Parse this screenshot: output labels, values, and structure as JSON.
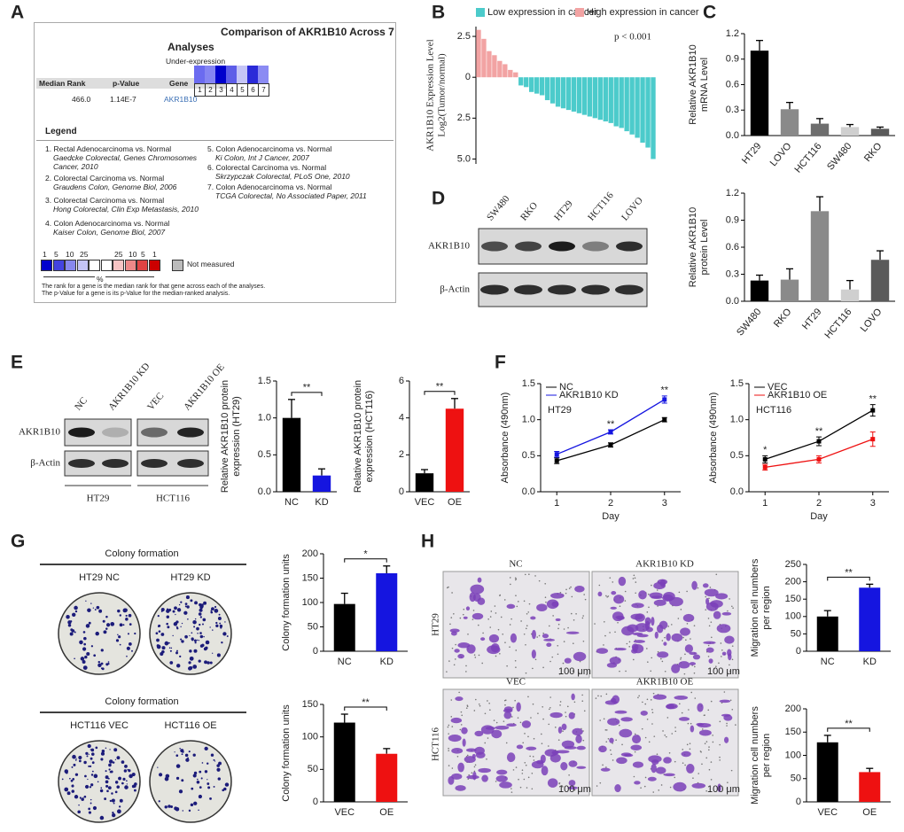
{
  "panel_labels": [
    "A",
    "B",
    "C",
    "D",
    "E",
    "F",
    "G",
    "H"
  ],
  "oncomine": {
    "title": "Comparison of AKR1B10 Across 7",
    "title2": "Analyses",
    "subtitle": "Under-expression",
    "headers": [
      "Median Rank",
      "p-Value",
      "Gene"
    ],
    "row": [
      "466.0",
      "1.14E-7",
      "AKR1B10"
    ],
    "columns": [
      "1",
      "2",
      "3",
      "4",
      "5",
      "6",
      "7"
    ],
    "legend_title": "Legend",
    "legend": [
      {
        "label": "1. Rectal Adenocarcinoma vs. Normal",
        "source": "Gaedcke Colorectal, Genes Chromosomes Cancer, 2010"
      },
      {
        "label": "2. Colorectal Carcinoma vs. Normal",
        "source": "Graudens Colon, Genome Biol, 2006"
      },
      {
        "label": "3. Colorectal Carcinoma vs. Normal",
        "source": "Hong Colorectal, Clin Exp Metastasis, 2010"
      },
      {
        "label": "4. Colon Adenocarcinoma vs. Normal",
        "source": "Kaiser Colon, Genome Biol, 2007"
      },
      {
        "label": "5. Colon Adenocarcinoma vs. Normal",
        "source": "Ki Colon, Int J Cancer, 2007"
      },
      {
        "label": "6. Colorectal Carcinoma vs. Normal",
        "source": "Skrzypczak Colorectal, PLoS One, 2010"
      },
      {
        "label": "7. Colon Adenocarcinoma vs. Normal",
        "source": "TCGA Colorectal, No Associated Paper, 2011"
      }
    ],
    "scale": [
      "1",
      "5",
      "10",
      "25",
      "25",
      "10",
      "5",
      "1"
    ],
    "scale_unit": "%",
    "not_measured": "Not measured",
    "notes": [
      "The rank for a gene is the median rank for that gene across each of the analyses.",
      "The p-Value for a gene is its p-Value for the median-ranked analysis."
    ]
  },
  "blot_d": {
    "lanes": [
      "SW480",
      "RKO",
      "HT29",
      "HCT116",
      "LOVO"
    ],
    "proteins": [
      "AKR1B10",
      "β-Actin"
    ]
  },
  "blot_e": {
    "lanes": [
      "NC",
      "AKR1B10 KD",
      "VEC",
      "AKR1B10 OE"
    ],
    "proteins": [
      "AKR1B10",
      "β-Actin"
    ],
    "groups": [
      "HT29",
      "HCT116"
    ]
  },
  "colony": {
    "title": "Colony formation",
    "labels": [
      "HT29 NC",
      "HT29 KD",
      "HCT116 VEC",
      "HCT116 OE"
    ]
  },
  "migration": {
    "columns": [
      "NC",
      "AKR1B10 KD",
      "VEC",
      "AKR1B10 OE"
    ],
    "rows": [
      "HT29",
      "HCT116"
    ],
    "scale_bar": "100 μm"
  },
  "chart_data": [
    {
      "type": "bar",
      "y_label": [
        "AKR1B10 Expression Level",
        "Log2(Tumor/normal)"
      ],
      "annotation": "p < 0.001",
      "legend": "top",
      "categories": [
        null,
        null,
        null,
        null,
        null,
        null,
        null,
        null,
        null,
        null,
        null,
        null,
        null,
        null,
        null,
        null,
        null,
        null,
        null,
        null,
        null,
        null,
        null,
        null,
        null,
        null,
        null,
        null,
        null,
        null,
        null,
        null,
        null,
        null
      ],
      "series": [
        {
          "name": "Low expression in cancer",
          "color": "#4ccbcb",
          "values": [
            null,
            null,
            null,
            null,
            null,
            null,
            null,
            null,
            -0.5,
            -0.6,
            -0.9,
            -1.0,
            -1.1,
            -1.4,
            -1.6,
            -1.8,
            -1.9,
            -2.0,
            -2.1,
            -2.2,
            -2.3,
            -2.4,
            -2.5,
            -2.6,
            -2.7,
            -2.8,
            -3.0,
            -3.1,
            -3.3,
            -3.5,
            -3.7,
            -4.0,
            -4.3,
            -5.0
          ]
        },
        {
          "name": "High expression in cancer",
          "color": "#f2a3a3",
          "values": [
            2.9,
            2.35,
            1.6,
            1.35,
            1.0,
            0.8,
            0.45,
            0.3,
            null,
            null,
            null,
            null,
            null,
            null,
            null,
            null,
            null,
            null,
            null,
            null,
            null,
            null,
            null,
            null,
            null,
            null,
            null,
            null,
            null,
            null,
            null,
            null,
            null,
            null
          ]
        }
      ],
      "ylim": [
        -5.3,
        3.1
      ],
      "yticks": [
        {
          "value": 2.5,
          "label": "2.5"
        },
        0,
        {
          "value": -2.5,
          "label": "2.5"
        },
        {
          "value": -5,
          "label": "5.0"
        }
      ]
    },
    {
      "type": "bar",
      "y_label": [
        "Relative AKR1B10",
        "mRNA Level"
      ],
      "categories": [
        "HT29",
        "LOVO",
        "HCT116",
        "SW480",
        "RKO"
      ],
      "values": [
        1.0,
        0.31,
        0.14,
        0.1,
        0.08
      ],
      "errors": [
        0.12,
        0.08,
        0.06,
        0.03,
        0.02
      ],
      "colors": [
        "#000000",
        "#8a8a8a",
        "#6e6e6e",
        "#cfcfcf",
        "#5a5a5a"
      ],
      "ylim": [
        0,
        1.2
      ],
      "yticks": [
        {
          "value": 0,
          "label": "0.0"
        },
        0.3,
        0.6,
        0.9,
        1.2
      ]
    },
    {
      "type": "bar",
      "y_label": [
        "Relative AKR1B10",
        "protein Level"
      ],
      "categories": [
        "SW480",
        "RKO",
        "HT29",
        "HCT116",
        "LOVO"
      ],
      "values": [
        0.23,
        0.24,
        1.0,
        0.13,
        0.46
      ],
      "errors": [
        0.06,
        0.12,
        0.16,
        0.1,
        0.1
      ],
      "colors": [
        "#000000",
        "#8a8a8a",
        "#8a8a8a",
        "#cfcfcf",
        "#5a5a5a"
      ],
      "ylim": [
        0,
        1.2
      ],
      "yticks": [
        {
          "value": 0,
          "label": "0.0"
        },
        0.3,
        0.6,
        0.9,
        1.2
      ]
    },
    {
      "type": "bar",
      "y_label": [
        "Relative AKR1B10 protein",
        "expression (HT29)"
      ],
      "categories": [
        "NC",
        "KD"
      ],
      "values": [
        1.0,
        0.22
      ],
      "errors": [
        0.25,
        0.09
      ],
      "colors": [
        "#000000",
        "#1515e0"
      ],
      "significance": "**",
      "ylim": [
        0,
        1.5
      ],
      "yticks": [
        {
          "value": 0,
          "label": "0.0"
        },
        0.5,
        {
          "value": 1,
          "label": "1.0"
        },
        1.5
      ]
    },
    {
      "type": "bar",
      "y_label": [
        "Relative AKR1B10 protein",
        "expression (HCT116)"
      ],
      "categories": [
        "VEC",
        "OE"
      ],
      "values": [
        1.0,
        4.5
      ],
      "errors": [
        0.2,
        0.55
      ],
      "colors": [
        "#000000",
        "#ee1111"
      ],
      "significance": "**",
      "ylim": [
        0,
        6
      ],
      "yticks": [
        0,
        2,
        4,
        6
      ]
    },
    {
      "type": "line",
      "y_label": [
        "Absorbance (490nm)"
      ],
      "x_label": "Day",
      "annotation": "HT29",
      "x": [
        1,
        2,
        3
      ],
      "xlim": [
        0.7,
        3.3
      ],
      "xticks": [
        1,
        2,
        3
      ],
      "series": [
        {
          "name": "NC",
          "color": "#000000",
          "values": [
            0.43,
            0.65,
            1.0
          ],
          "errors": [
            0.04,
            0.03,
            0.03
          ]
        },
        {
          "name": "AKR1B10 KD",
          "color": "#1515e0",
          "values": [
            0.52,
            0.83,
            1.28
          ],
          "errors": [
            0.04,
            0.03,
            0.05
          ]
        }
      ],
      "significance": [
        null,
        "**",
        "**"
      ],
      "ylim": [
        0,
        1.5
      ],
      "yticks": [
        {
          "value": 0,
          "label": "0.0"
        },
        0.5,
        {
          "value": 1,
          "label": "1.0"
        },
        1.5
      ]
    },
    {
      "type": "line",
      "y_label": [
        "Absorbance (490nm)"
      ],
      "x_label": "Day",
      "annotation": "HCT116",
      "x": [
        1,
        2,
        3
      ],
      "xlim": [
        0.7,
        3.3
      ],
      "xticks": [
        1,
        2,
        3
      ],
      "series": [
        {
          "name": "VEC",
          "color": "#000000",
          "values": [
            0.45,
            0.7,
            1.13
          ],
          "errors": [
            0.05,
            0.06,
            0.08
          ]
        },
        {
          "name": "AKR1B10 OE",
          "color": "#ee1111",
          "values": [
            0.34,
            0.45,
            0.73
          ],
          "errors": [
            0.04,
            0.05,
            0.1
          ]
        }
      ],
      "significance": [
        "*",
        "**",
        "**"
      ],
      "ylim": [
        0,
        1.5
      ],
      "yticks": [
        {
          "value": 0,
          "label": "0.0"
        },
        0.5,
        {
          "value": 1,
          "label": "1.0"
        },
        1.5
      ]
    },
    {
      "type": "bar",
      "y_label": [
        "Colony formation units"
      ],
      "categories": [
        "NC",
        "KD"
      ],
      "values": [
        97,
        160
      ],
      "errors": [
        22,
        15
      ],
      "colors": [
        "#000000",
        "#1515e0"
      ],
      "significance": "*",
      "ylim": [
        0,
        200
      ],
      "yticks": [
        0,
        50,
        100,
        150,
        200
      ]
    },
    {
      "type": "bar",
      "y_label": [
        "Colony formation units"
      ],
      "categories": [
        "VEC",
        "OE"
      ],
      "values": [
        122,
        74
      ],
      "errors": [
        13,
        8
      ],
      "colors": [
        "#000000",
        "#ee1111"
      ],
      "significance": "**",
      "ylim": [
        0,
        150
      ],
      "yticks": [
        0,
        50,
        100,
        150
      ]
    },
    {
      "type": "bar",
      "y_label": [
        "Migration cell numbers",
        "per region"
      ],
      "categories": [
        "NC",
        "KD"
      ],
      "values": [
        100,
        183
      ],
      "errors": [
        17,
        10
      ],
      "colors": [
        "#000000",
        "#1515e0"
      ],
      "significance": "**",
      "ylim": [
        0,
        250
      ],
      "yticks": [
        0,
        50,
        100,
        150,
        200,
        250
      ]
    },
    {
      "type": "bar",
      "y_label": [
        "Migration cell numbers",
        "per region"
      ],
      "categories": [
        "VEC",
        "OE"
      ],
      "values": [
        128,
        64
      ],
      "errors": [
        15,
        8
      ],
      "colors": [
        "#000000",
        "#ee1111"
      ],
      "significance": "**",
      "ylim": [
        0,
        200
      ],
      "yticks": [
        0,
        50,
        100,
        150,
        200
      ]
    }
  ]
}
